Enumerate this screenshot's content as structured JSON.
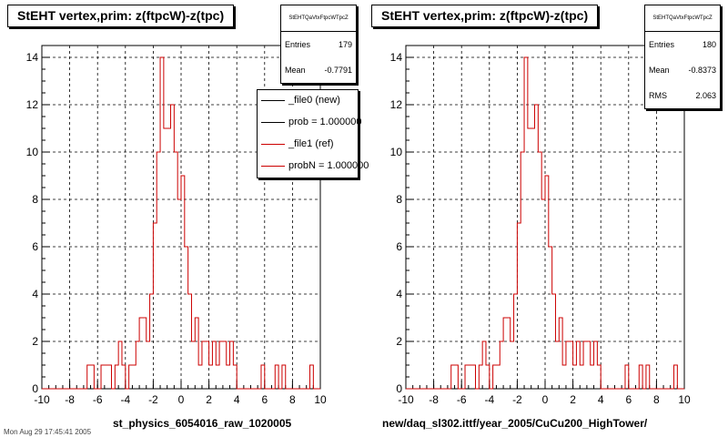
{
  "chart_data": [
    {
      "type": "histogram",
      "title": "StEHT  vertex,prim: z(ftpcW)-z(tpc)",
      "xlabel": "st_physics_6054016_raw_1020005",
      "xlim": [
        -10,
        10
      ],
      "ylim": [
        0,
        14.5
      ],
      "x_ticks": [
        -10,
        -8,
        -6,
        -4,
        -2,
        0,
        2,
        4,
        6,
        8,
        10
      ],
      "y_ticks": [
        0,
        2,
        4,
        6,
        8,
        10,
        12,
        14
      ],
      "grid": true,
      "bin_width": 0.25,
      "stats": {
        "name": "StEHTQaVtxFtpcWTpcZ",
        "entries_label": "Entries",
        "entries": "179",
        "mean_label": "Mean",
        "mean": "-0.7791"
      },
      "legend": {
        "placement": "right",
        "entries": [
          {
            "label": "_file0 (new)",
            "color": "#000000"
          },
          {
            "label": "prob = 1.000000",
            "color": "#000000"
          },
          {
            "label": "_file1 (ref)",
            "color": "#cc0000"
          },
          {
            "label": "probN = 1.000000",
            "color": "#cc0000"
          }
        ]
      },
      "series": [
        {
          "color": "#cc0000",
          "bins": [
            [
              -6.75,
              1
            ],
            [
              -6.5,
              1
            ],
            [
              -5.75,
              1
            ],
            [
              -5.5,
              1
            ],
            [
              -5.25,
              1
            ],
            [
              -4.75,
              1
            ],
            [
              -4.5,
              2
            ],
            [
              -4.25,
              1
            ],
            [
              -3.75,
              1
            ],
            [
              -3.5,
              1
            ],
            [
              -3.25,
              2
            ],
            [
              -3.0,
              3
            ],
            [
              -2.75,
              3
            ],
            [
              -2.5,
              2
            ],
            [
              -2.25,
              4
            ],
            [
              -2.0,
              7
            ],
            [
              -1.75,
              10
            ],
            [
              -1.5,
              14
            ],
            [
              -1.25,
              11
            ],
            [
              -1.0,
              11
            ],
            [
              -0.75,
              12
            ],
            [
              -0.5,
              10
            ],
            [
              -0.25,
              8
            ],
            [
              0.0,
              9
            ],
            [
              0.25,
              6
            ],
            [
              0.5,
              4
            ],
            [
              0.75,
              2
            ],
            [
              1.0,
              3
            ],
            [
              1.25,
              1
            ],
            [
              1.5,
              2
            ],
            [
              1.75,
              2
            ],
            [
              2.0,
              1
            ],
            [
              2.25,
              2
            ],
            [
              2.5,
              1
            ],
            [
              2.75,
              2
            ],
            [
              3.0,
              2
            ],
            [
              3.25,
              1
            ],
            [
              3.5,
              2
            ],
            [
              3.75,
              1
            ],
            [
              5.75,
              1
            ],
            [
              6.75,
              1
            ],
            [
              7.25,
              1
            ],
            [
              9.25,
              1
            ]
          ]
        }
      ]
    },
    {
      "type": "histogram",
      "title": "StEHT  vertex,prim: z(ftpcW)-z(tpc)",
      "xlabel": "new/daq_sl302.ittf/year_2005/CuCu200_HighTower/",
      "xlim": [
        -10,
        10
      ],
      "ylim": [
        0,
        14.5
      ],
      "x_ticks": [
        -10,
        -8,
        -6,
        -4,
        -2,
        0,
        2,
        4,
        6,
        8,
        10
      ],
      "y_ticks": [
        0,
        2,
        4,
        6,
        8,
        10,
        12,
        14
      ],
      "grid": true,
      "bin_width": 0.25,
      "stats": {
        "name": "StEHTQaVtxFtpcWTpcZ",
        "entries_label": "Entries",
        "entries": "180",
        "mean_label": "Mean",
        "mean": "-0.8373",
        "rms_label": "RMS",
        "rms": "2.063"
      },
      "series": [
        {
          "color": "#cc0000",
          "bins": [
            [
              -6.75,
              1
            ],
            [
              -6.5,
              1
            ],
            [
              -5.75,
              1
            ],
            [
              -5.5,
              1
            ],
            [
              -5.25,
              1
            ],
            [
              -4.75,
              1
            ],
            [
              -4.5,
              2
            ],
            [
              -4.25,
              1
            ],
            [
              -3.75,
              1
            ],
            [
              -3.5,
              1
            ],
            [
              -3.25,
              2
            ],
            [
              -3.0,
              3
            ],
            [
              -2.75,
              3
            ],
            [
              -2.5,
              2
            ],
            [
              -2.25,
              4
            ],
            [
              -2.0,
              7
            ],
            [
              -1.75,
              10
            ],
            [
              -1.5,
              14
            ],
            [
              -1.25,
              11
            ],
            [
              -1.0,
              11
            ],
            [
              -0.75,
              12
            ],
            [
              -0.5,
              10
            ],
            [
              -0.25,
              8
            ],
            [
              0.0,
              9
            ],
            [
              0.25,
              6
            ],
            [
              0.5,
              4
            ],
            [
              0.75,
              2
            ],
            [
              1.0,
              3
            ],
            [
              1.25,
              1
            ],
            [
              1.5,
              2
            ],
            [
              1.75,
              2
            ],
            [
              2.0,
              1
            ],
            [
              2.25,
              2
            ],
            [
              2.5,
              1
            ],
            [
              2.75,
              2
            ],
            [
              3.0,
              2
            ],
            [
              3.25,
              1
            ],
            [
              3.5,
              2
            ],
            [
              3.75,
              1
            ],
            [
              5.75,
              1
            ],
            [
              6.75,
              1
            ],
            [
              7.25,
              1
            ],
            [
              9.25,
              1
            ]
          ]
        }
      ]
    }
  ],
  "footer": "Mon Aug 29 17:45:41 2005"
}
